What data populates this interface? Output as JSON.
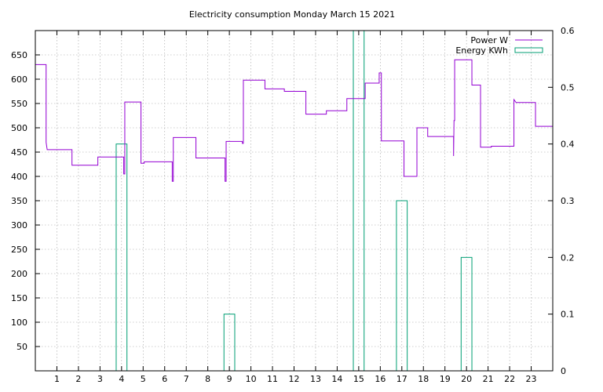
{
  "chart_data": {
    "type": "line",
    "title": "Electricity consumption Monday March 15 2021",
    "xlabel": "",
    "ylabel": "",
    "y2label": "",
    "xlim": [
      0,
      24
    ],
    "ylim": [
      0,
      700
    ],
    "y2lim": [
      0,
      0.6
    ],
    "x_ticks": [
      1,
      2,
      3,
      4,
      5,
      6,
      7,
      8,
      9,
      10,
      11,
      12,
      13,
      14,
      15,
      16,
      17,
      18,
      19,
      20,
      21,
      22,
      23
    ],
    "y_ticks": [
      50,
      100,
      150,
      200,
      250,
      300,
      350,
      400,
      450,
      500,
      550,
      600,
      650
    ],
    "y2_ticks": [
      0,
      0.1,
      0.2,
      0.3,
      0.4,
      0.5,
      0.6
    ],
    "y2_tick_labels": [
      "0",
      "0.1",
      "0.2",
      "0.3",
      "0.4",
      "0.5",
      "0.6"
    ],
    "grid": true,
    "legend_position": "top-right",
    "series": [
      {
        "name": "Power W",
        "color": "#9400d3",
        "axis": "y",
        "style": "steps",
        "points": [
          [
            0.0,
            630
          ],
          [
            0.5,
            630
          ],
          [
            0.5,
            470
          ],
          [
            0.55,
            455
          ],
          [
            1.7,
            455
          ],
          [
            1.7,
            423
          ],
          [
            2.9,
            423
          ],
          [
            2.9,
            440
          ],
          [
            4.1,
            440
          ],
          [
            4.1,
            405
          ],
          [
            4.15,
            405
          ],
          [
            4.15,
            553
          ],
          [
            4.9,
            553
          ],
          [
            4.9,
            427
          ],
          [
            5.05,
            427
          ],
          [
            5.05,
            430
          ],
          [
            6.35,
            430
          ],
          [
            6.35,
            390
          ],
          [
            6.4,
            390
          ],
          [
            6.4,
            480
          ],
          [
            7.45,
            480
          ],
          [
            7.45,
            438
          ],
          [
            8.8,
            438
          ],
          [
            8.8,
            390
          ],
          [
            8.85,
            390
          ],
          [
            8.85,
            472
          ],
          [
            9.6,
            472
          ],
          [
            9.6,
            468
          ],
          [
            9.65,
            468
          ],
          [
            9.65,
            598
          ],
          [
            10.65,
            598
          ],
          [
            10.65,
            580
          ],
          [
            11.55,
            580
          ],
          [
            11.55,
            575
          ],
          [
            12.55,
            575
          ],
          [
            12.55,
            528
          ],
          [
            13.5,
            528
          ],
          [
            13.5,
            535
          ],
          [
            14.45,
            535
          ],
          [
            14.45,
            560
          ],
          [
            15.3,
            560
          ],
          [
            15.3,
            592
          ],
          [
            15.95,
            592
          ],
          [
            15.95,
            613
          ],
          [
            16.05,
            613
          ],
          [
            16.05,
            473
          ],
          [
            17.1,
            473
          ],
          [
            17.1,
            400
          ],
          [
            17.7,
            400
          ],
          [
            17.7,
            500
          ],
          [
            18.2,
            500
          ],
          [
            18.2,
            482
          ],
          [
            19.4,
            482
          ],
          [
            19.4,
            442
          ],
          [
            19.42,
            515
          ],
          [
            19.45,
            515
          ],
          [
            19.45,
            640
          ],
          [
            20.25,
            640
          ],
          [
            20.25,
            588
          ],
          [
            20.65,
            588
          ],
          [
            20.65,
            460
          ],
          [
            21.15,
            460
          ],
          [
            21.15,
            462
          ],
          [
            22.2,
            462
          ],
          [
            22.2,
            558
          ],
          [
            22.3,
            552
          ],
          [
            23.2,
            552
          ],
          [
            23.2,
            503
          ],
          [
            24.0,
            503
          ]
        ]
      },
      {
        "name": "Energy KWh",
        "color": "#009e73",
        "axis": "y2",
        "style": "boxes",
        "bars": [
          {
            "x": 4,
            "value": 0.4
          },
          {
            "x": 9,
            "value": 0.1
          },
          {
            "x": 15,
            "value": 0.6
          },
          {
            "x": 17,
            "value": 0.3
          },
          {
            "x": 20,
            "value": 0.2
          }
        ]
      }
    ]
  }
}
